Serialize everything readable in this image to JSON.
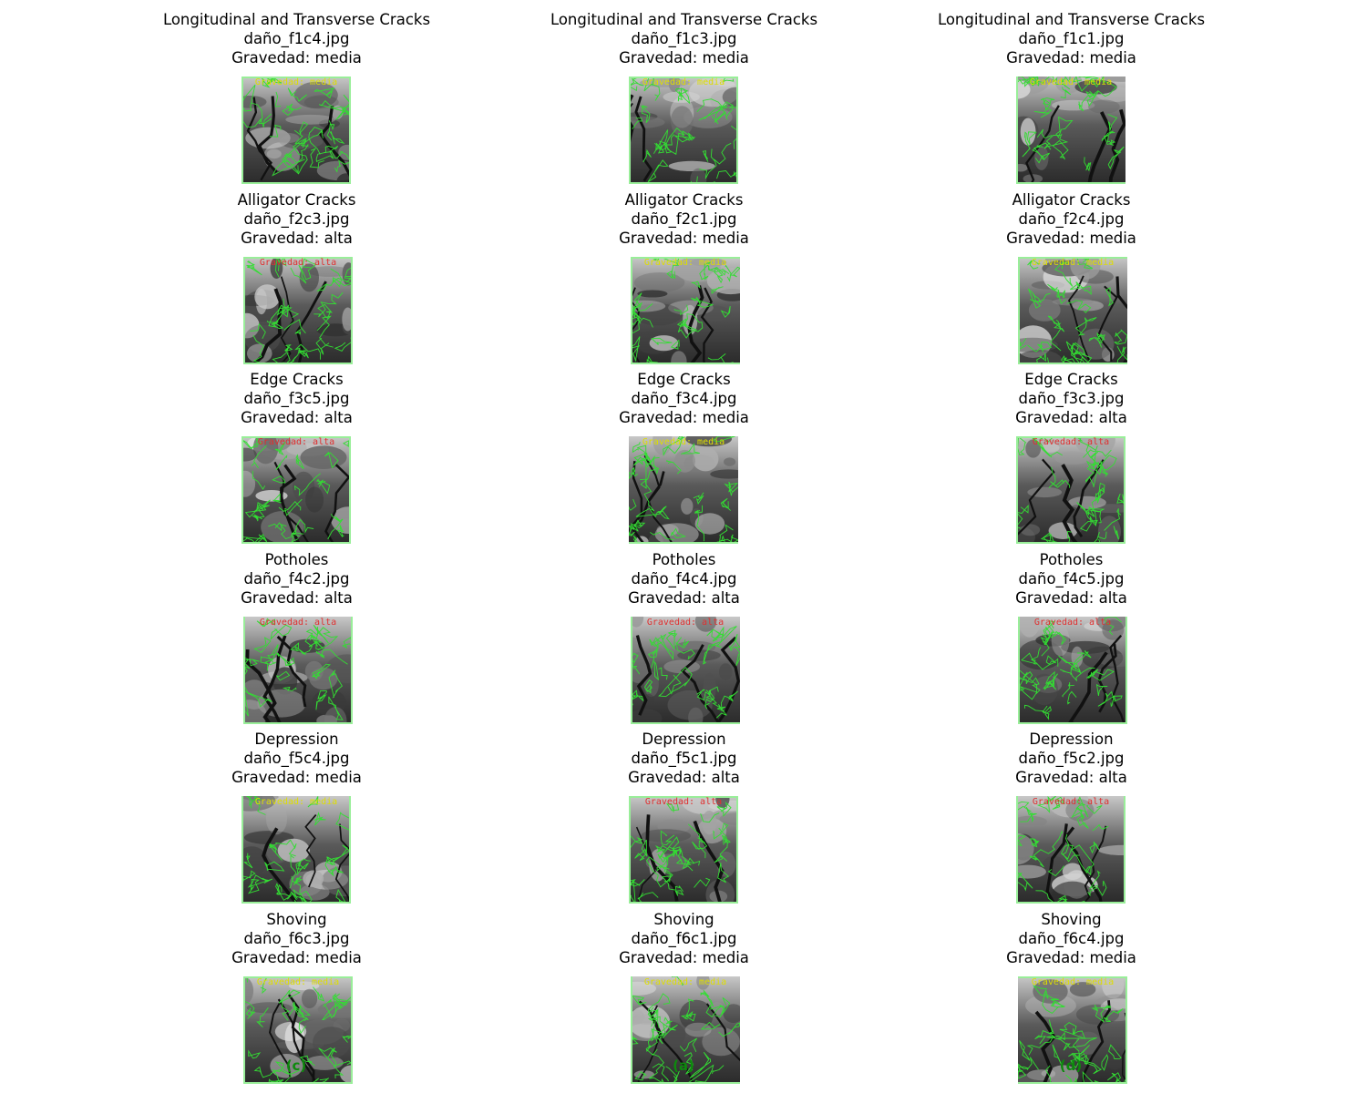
{
  "colors": {
    "background": "#ffffff",
    "title_text": "#000000",
    "contour": "#33dd33",
    "contour_light": "#99ee99",
    "label_media": "#dede00",
    "label_alta": "#e03030",
    "panel_label": "#0d8a0d"
  },
  "columns": [
    {
      "panel_label": "(c)",
      "cells": [
        {
          "damage_type": "Longitudinal and Transverse Cracks",
          "file": "daño_f1c4.jpg",
          "severity_text": "Gravedad: media",
          "overlay_text": "Gravedad: media",
          "severity": "media"
        },
        {
          "damage_type": "Alligator Cracks",
          "file": "daño_f2c3.jpg",
          "severity_text": "Gravedad: alta",
          "overlay_text": "Gravedad: alta",
          "severity": "alta"
        },
        {
          "damage_type": "Edge Cracks",
          "file": "daño_f3c5.jpg",
          "severity_text": "Gravedad: alta",
          "overlay_text": "Gravedad: alta",
          "severity": "alta"
        },
        {
          "damage_type": "Potholes",
          "file": "daño_f4c2.jpg",
          "severity_text": "Gravedad: alta",
          "overlay_text": "Gravedad: alta",
          "severity": "alta"
        },
        {
          "damage_type": "Depression",
          "file": "daño_f5c4.jpg",
          "severity_text": "Gravedad: media",
          "overlay_text": "Gravedad: media",
          "severity": "media"
        },
        {
          "damage_type": "Shoving",
          "file": "daño_f6c3.jpg",
          "severity_text": "Gravedad: media",
          "overlay_text": "Gravedad: media",
          "severity": "media"
        }
      ]
    },
    {
      "panel_label": "(a)",
      "cells": [
        {
          "damage_type": "Longitudinal and Transverse Cracks",
          "file": "daño_f1c3.jpg",
          "severity_text": "Gravedad: media",
          "overlay_text": "Gravedad: media",
          "severity": "media"
        },
        {
          "damage_type": "Alligator Cracks",
          "file": "daño_f2c1.jpg",
          "severity_text": "Gravedad: media",
          "overlay_text": "Gravedad: media",
          "severity": "media"
        },
        {
          "damage_type": "Edge Cracks",
          "file": "daño_f3c4.jpg",
          "severity_text": "Gravedad: media",
          "overlay_text": "Gravedad: media",
          "severity": "media"
        },
        {
          "damage_type": "Potholes",
          "file": "daño_f4c4.jpg",
          "severity_text": "Gravedad: alta",
          "overlay_text": "Gravedad: alta",
          "severity": "alta"
        },
        {
          "damage_type": "Depression",
          "file": "daño_f5c1.jpg",
          "severity_text": "Gravedad: alta",
          "overlay_text": "Gravedad: alta",
          "severity": "alta"
        },
        {
          "damage_type": "Shoving",
          "file": "daño_f6c1.jpg",
          "severity_text": "Gravedad: media",
          "overlay_text": "Gravedad: media",
          "severity": "media"
        }
      ]
    },
    {
      "panel_label": "(d)",
      "cells": [
        {
          "damage_type": "Longitudinal and Transverse Cracks",
          "file": "daño_f1c1.jpg",
          "severity_text": "Gravedad: media",
          "overlay_text": "Gravedad: media",
          "severity": "media"
        },
        {
          "damage_type": "Alligator Cracks",
          "file": "daño_f2c4.jpg",
          "severity_text": "Gravedad: media",
          "overlay_text": "Gravedad: media",
          "severity": "media"
        },
        {
          "damage_type": "Edge Cracks",
          "file": "daño_f3c3.jpg",
          "severity_text": "Gravedad: alta",
          "overlay_text": "Gravedad: alta",
          "severity": "alta"
        },
        {
          "damage_type": "Potholes",
          "file": "daño_f4c5.jpg",
          "severity_text": "Gravedad: alta",
          "overlay_text": "Gravedad: alta",
          "severity": "alta"
        },
        {
          "damage_type": "Depression",
          "file": "daño_f5c2.jpg",
          "severity_text": "Gravedad: alta",
          "overlay_text": "Gravedad: alta",
          "severity": "alta"
        },
        {
          "damage_type": "Shoving",
          "file": "daño_f6c4.jpg",
          "severity_text": "Gravedad: media",
          "overlay_text": "Gravedad: media",
          "severity": "media"
        }
      ]
    }
  ]
}
